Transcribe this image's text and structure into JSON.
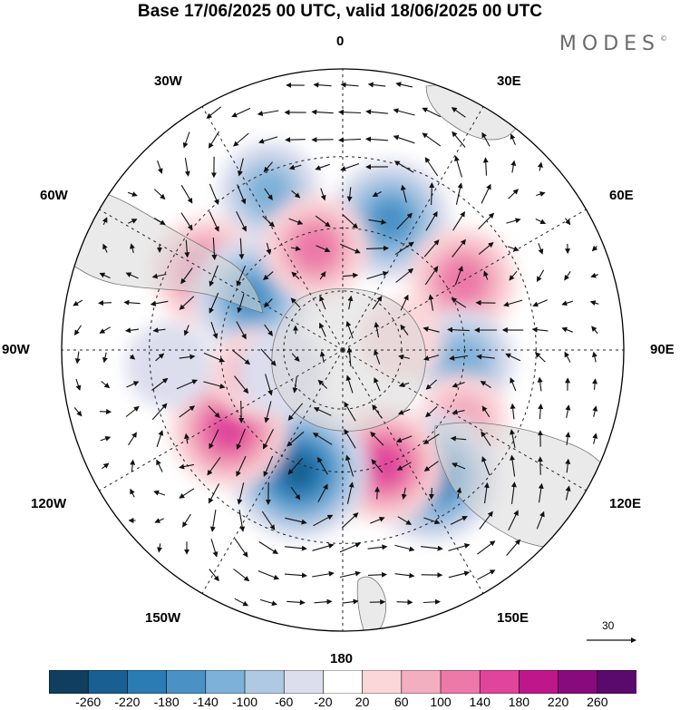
{
  "title": "Base 17/06/2025 00 UTC, valid 18/06/2025 00 UTC",
  "logo": "MODES",
  "logo_mark": "©",
  "longitude_labels": {
    "lon_0": "0",
    "lon_30e": "30E",
    "lon_60e": "60E",
    "lon_90e": "90E",
    "lon_120e": "120E",
    "lon_150e": "150E",
    "lon_180": "180",
    "lon_150w": "150W",
    "lon_120w": "120W",
    "lon_90w": "90W",
    "lon_60w": "60W",
    "lon_30w": "30W"
  },
  "wind_scale": {
    "value": "30"
  },
  "colorbar": {
    "ticks": [
      "-260",
      "-220",
      "-180",
      "-140",
      "-100",
      "-60",
      "-20",
      "20",
      "60",
      "100",
      "140",
      "180",
      "220",
      "260"
    ],
    "colors": [
      "#0f3e5e",
      "#195f91",
      "#2b7bb5",
      "#4a92c6",
      "#7eb1d9",
      "#b0c9e3",
      "#dcdeee",
      "#ffffff",
      "#fbd7d9",
      "#f3aec0",
      "#ec79a8",
      "#e0449b",
      "#c0168b",
      "#890a7c",
      "#5a0a6c"
    ]
  },
  "map": {
    "projection": "south-polar-stereographic",
    "anomalies": [
      {
        "lon": 20,
        "lat": -45,
        "value": -170
      },
      {
        "lon": 335,
        "lat": -35,
        "value": -110
      },
      {
        "lon": 300,
        "lat": -40,
        "value": 140
      },
      {
        "lon": 300,
        "lat": -55,
        "value": -160
      },
      {
        "lon": 345,
        "lat": -55,
        "value": 120
      },
      {
        "lon": 60,
        "lat": -45,
        "value": 130
      },
      {
        "lon": 95,
        "lat": -50,
        "value": -110
      },
      {
        "lon": 120,
        "lat": -45,
        "value": 70
      },
      {
        "lon": 145,
        "lat": -40,
        "value": -200
      },
      {
        "lon": 160,
        "lat": -50,
        "value": 160
      },
      {
        "lon": 200,
        "lat": -48,
        "value": -230
      },
      {
        "lon": 235,
        "lat": -45,
        "value": 160
      },
      {
        "lon": 255,
        "lat": -60,
        "value": 70
      },
      {
        "lon": 250,
        "lat": -68,
        "value": -60
      },
      {
        "lon": 265,
        "lat": -35,
        "value": -60
      },
      {
        "lon": 80,
        "lat": -70,
        "value": 40
      }
    ]
  }
}
